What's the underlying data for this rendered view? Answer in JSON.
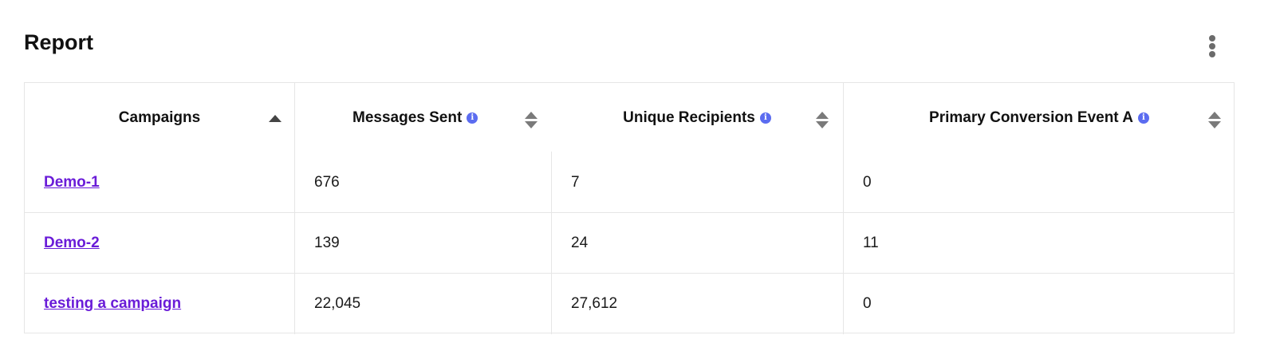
{
  "title": "Report",
  "menu_icon": "more-vertical-icon",
  "colors": {
    "link": "#6a1cd8",
    "info": "#5b6cf0",
    "border": "#e6e6e6"
  },
  "columns": [
    {
      "label": "Campaigns",
      "info": false,
      "sort": "ascending"
    },
    {
      "label": "Messages Sent",
      "info": true,
      "sort": "none"
    },
    {
      "label": "Unique Recipients",
      "info": true,
      "sort": "none"
    },
    {
      "label": "Primary Conversion Event A",
      "info": true,
      "sort": "none"
    }
  ],
  "rows": [
    {
      "campaign": "Demo-1",
      "messages_sent": "676",
      "unique_recipients": "7",
      "conversion": "0"
    },
    {
      "campaign": "Demo-2",
      "messages_sent": "139",
      "unique_recipients": "24",
      "conversion": "11"
    },
    {
      "campaign": "testing a campaign",
      "messages_sent": "22,045",
      "unique_recipients": "27,612",
      "conversion": "0"
    }
  ]
}
